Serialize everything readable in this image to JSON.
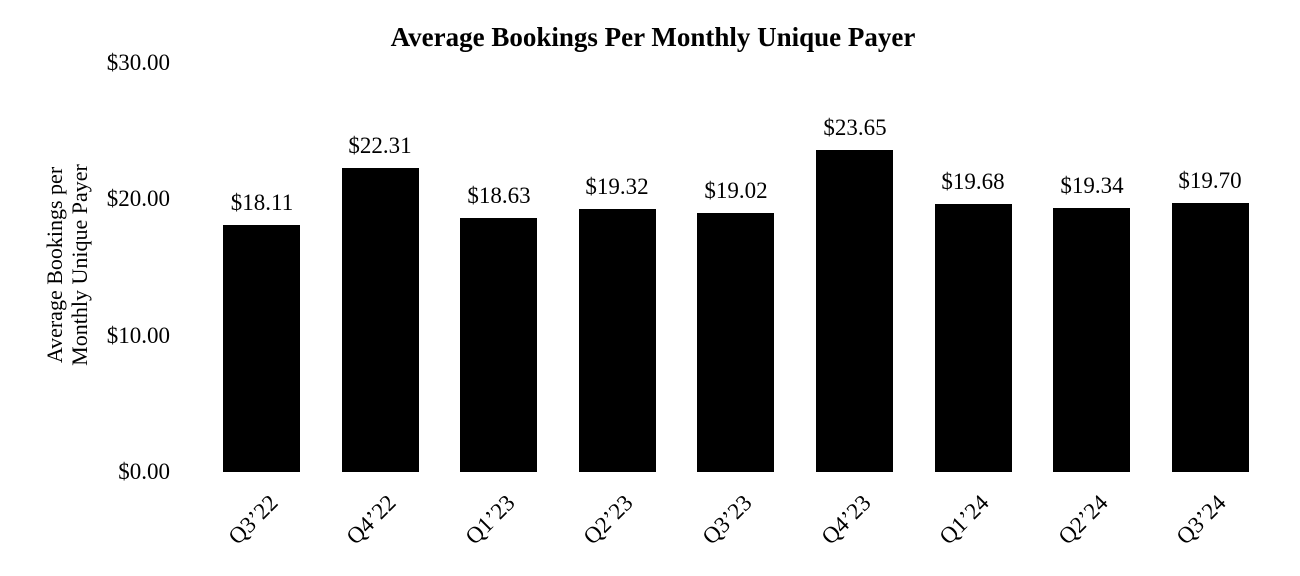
{
  "page": {
    "background_color": "#ffffff",
    "text_color": "#000000"
  },
  "chart_data": {
    "type": "bar",
    "title": "Average Bookings Per Monthly Unique Payer",
    "ylabel_lines": [
      "Average Bookings per",
      "Monthly Unique Payer"
    ],
    "xlabel": "",
    "categories": [
      "Q3’22",
      "Q4’22",
      "Q1’23",
      "Q2’23",
      "Q3’23",
      "Q4’23",
      "Q1’24",
      "Q2’24",
      "Q3’24"
    ],
    "values": [
      18.11,
      22.31,
      18.63,
      19.32,
      19.02,
      23.65,
      19.68,
      19.34,
      19.7
    ],
    "data_labels": [
      "$18.11",
      "$22.31",
      "$18.63",
      "$19.32",
      "$19.02",
      "$23.65",
      "$19.68",
      "$19.34",
      "$19.70"
    ],
    "yticks": [
      {
        "value": 30,
        "label": "$30.00"
      },
      {
        "value": 20,
        "label": "$20.00"
      },
      {
        "value": 10,
        "label": "$10.00"
      },
      {
        "value": 0,
        "label": "$0.00"
      }
    ],
    "ylim": [
      0,
      30
    ],
    "grid": false,
    "legend": false,
    "bar_color": "#000000",
    "text_color": "#000000",
    "background_color": "#ffffff"
  }
}
